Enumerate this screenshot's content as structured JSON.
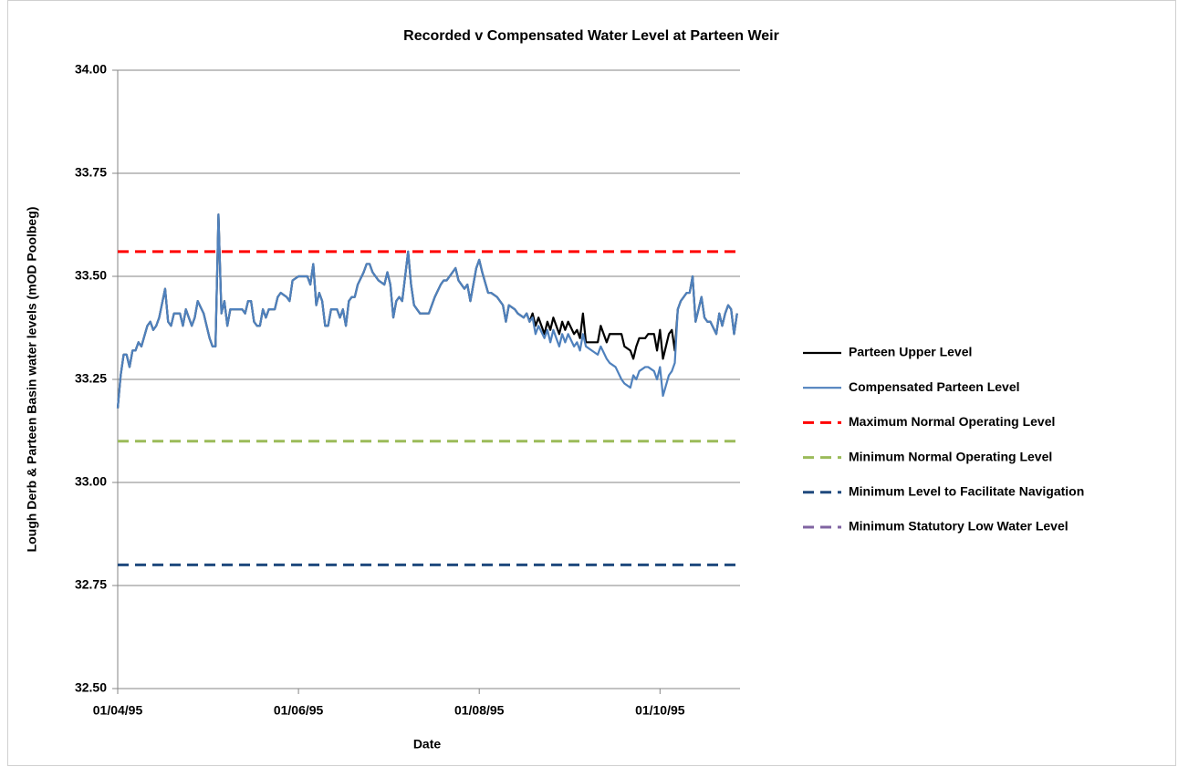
{
  "chart_data": {
    "type": "line",
    "title": "Recorded v Compensated Water Level at Parteen Weir",
    "xlabel": "Date",
    "ylabel": "Lough Derb & Parteen Basin water levels (mOD Poolbeg)",
    "xlim": [
      "01/04/95",
      "28/10/95"
    ],
    "xticks": [
      "01/04/95",
      "01/06/95",
      "01/08/95",
      "01/10/95"
    ],
    "ylim": [
      32.5,
      34
    ],
    "yticks": [
      {
        "value": 32.5,
        "label": "32.50"
      },
      {
        "value": 32.75,
        "label": "32.75"
      },
      {
        "value": 33,
        "label": "33.00"
      },
      {
        "value": 33.25,
        "label": "33.25"
      },
      {
        "value": 33.5,
        "label": "33.50"
      },
      {
        "value": 33.75,
        "label": "33.75"
      },
      {
        "value": 34,
        "label": "34.00"
      }
    ],
    "grid": true,
    "legend": "right",
    "x": [
      "01/04/95",
      "02/04/95",
      "03/04/95",
      "04/04/95",
      "05/04/95",
      "06/04/95",
      "07/04/95",
      "08/04/95",
      "09/04/95",
      "11/04/95",
      "12/04/95",
      "13/04/95",
      "14/04/95",
      "15/04/95",
      "17/04/95",
      "18/04/95",
      "19/04/95",
      "20/04/95",
      "22/04/95",
      "23/04/95",
      "24/04/95",
      "25/04/95",
      "26/04/95",
      "27/04/95",
      "28/04/95",
      "30/04/95",
      "01/05/95",
      "02/05/95",
      "03/05/95",
      "04/05/95",
      "05/05/95",
      "06/05/95",
      "07/05/95",
      "08/05/95",
      "09/05/95",
      "11/05/95",
      "13/05/95",
      "14/05/95",
      "15/05/95",
      "16/05/95",
      "17/05/95",
      "18/05/95",
      "19/05/95",
      "20/05/95",
      "21/05/95",
      "22/05/95",
      "24/05/95",
      "25/05/95",
      "26/05/95",
      "28/05/95",
      "29/05/95",
      "30/05/95",
      "01/06/95",
      "02/06/95",
      "04/06/95",
      "05/06/95",
      "06/06/95",
      "07/06/95",
      "08/06/95",
      "09/06/95",
      "10/06/95",
      "11/06/95",
      "12/06/95",
      "14/06/95",
      "15/06/95",
      "16/06/95",
      "17/06/95",
      "18/06/95",
      "19/06/95",
      "20/06/95",
      "21/06/95",
      "23/06/95",
      "24/06/95",
      "25/06/95",
      "26/06/95",
      "28/06/95",
      "30/06/95",
      "01/07/95",
      "02/07/95",
      "03/07/95",
      "04/07/95",
      "05/07/95",
      "06/07/95",
      "08/07/95",
      "09/07/95",
      "10/07/95",
      "12/07/95",
      "13/07/95",
      "15/07/95",
      "16/07/95",
      "17/07/95",
      "19/07/95",
      "20/07/95",
      "21/07/95",
      "23/07/95",
      "24/07/95",
      "25/07/95",
      "27/07/95",
      "28/07/95",
      "29/07/95",
      "30/07/95",
      "31/07/95",
      "01/08/95",
      "02/08/95",
      "04/08/95",
      "05/08/95",
      "07/08/95",
      "09/08/95",
      "10/08/95",
      "11/08/95",
      "13/08/95",
      "14/08/95",
      "16/08/95",
      "17/08/95",
      "18/08/95",
      "19/08/95",
      "20/08/95",
      "21/08/95",
      "23/08/95",
      "24/08/95",
      "25/08/95",
      "26/08/95",
      "28/08/95",
      "29/08/95",
      "30/08/95",
      "31/08/95",
      "02/09/95",
      "03/09/95",
      "04/09/95",
      "05/09/95",
      "06/09/95",
      "08/09/95",
      "10/09/95",
      "11/09/95",
      "13/09/95",
      "14/09/95",
      "16/09/95",
      "18/09/95",
      "19/09/95",
      "21/09/95",
      "22/09/95",
      "23/09/95",
      "24/09/95",
      "26/09/95",
      "27/09/95",
      "29/09/95",
      "30/09/95",
      "01/10/95",
      "02/10/95",
      "04/10/95",
      "05/10/95",
      "06/10/95",
      "07/10/95",
      "08/10/95",
      "10/10/95",
      "11/10/95",
      "12/10/95",
      "13/10/95",
      "15/10/95",
      "16/10/95",
      "17/10/95",
      "18/10/95",
      "20/10/95",
      "21/10/95",
      "22/10/95",
      "23/10/95",
      "24/10/95",
      "25/10/95",
      "26/10/95",
      "27/10/95"
    ],
    "series": [
      {
        "name": "Parteen Upper Level",
        "color": "#000000",
        "values": [
          33.18,
          33.26,
          33.31,
          33.31,
          33.28,
          33.32,
          33.32,
          33.34,
          33.33,
          33.38,
          33.39,
          33.37,
          33.38,
          33.4,
          33.47,
          33.39,
          33.38,
          33.41,
          33.41,
          33.38,
          33.42,
          33.4,
          33.38,
          33.4,
          33.44,
          33.41,
          33.38,
          33.35,
          33.33,
          33.33,
          33.65,
          33.41,
          33.44,
          33.38,
          33.42,
          33.42,
          33.42,
          33.41,
          33.44,
          33.44,
          33.39,
          33.38,
          33.38,
          33.42,
          33.4,
          33.42,
          33.42,
          33.45,
          33.46,
          33.45,
          33.44,
          33.49,
          33.5,
          33.5,
          33.5,
          33.48,
          33.53,
          33.43,
          33.46,
          33.44,
          33.38,
          33.38,
          33.42,
          33.42,
          33.4,
          33.42,
          33.38,
          33.44,
          33.45,
          33.45,
          33.48,
          33.51,
          33.53,
          33.53,
          33.51,
          33.49,
          33.48,
          33.51,
          33.48,
          33.4,
          33.44,
          33.45,
          33.44,
          33.56,
          33.48,
          33.43,
          33.41,
          33.41,
          33.41,
          33.43,
          33.45,
          33.48,
          33.49,
          33.49,
          33.51,
          33.52,
          33.49,
          33.47,
          33.48,
          33.44,
          33.48,
          33.52,
          33.54,
          33.51,
          33.46,
          33.46,
          33.45,
          33.43,
          33.39,
          33.43,
          33.42,
          33.41,
          33.4,
          33.41,
          33.39,
          33.41,
          33.38,
          33.4,
          33.36,
          33.39,
          33.37,
          33.4,
          33.36,
          33.39,
          33.37,
          33.39,
          33.36,
          33.37,
          33.35,
          33.41,
          33.34,
          33.34,
          33.34,
          33.38,
          33.34,
          33.36,
          33.36,
          33.36,
          33.33,
          33.32,
          33.3,
          33.33,
          33.35,
          33.35,
          33.36,
          33.36,
          33.32,
          33.37,
          33.3,
          33.36,
          33.37,
          33.32,
          33.42,
          33.44,
          33.46,
          33.46,
          33.5,
          33.39,
          33.45,
          33.4,
          33.39,
          33.39,
          33.36,
          33.41,
          33.38,
          33.41,
          33.43,
          33.42,
          33.36,
          33.41
        ]
      },
      {
        "name": "Compensated Parteen Level",
        "color": "#4f81bd",
        "values": [
          33.18,
          33.26,
          33.31,
          33.31,
          33.28,
          33.32,
          33.32,
          33.34,
          33.33,
          33.38,
          33.39,
          33.37,
          33.38,
          33.4,
          33.47,
          33.39,
          33.38,
          33.41,
          33.41,
          33.38,
          33.42,
          33.4,
          33.38,
          33.4,
          33.44,
          33.41,
          33.38,
          33.35,
          33.33,
          33.33,
          33.65,
          33.41,
          33.44,
          33.38,
          33.42,
          33.42,
          33.42,
          33.41,
          33.44,
          33.44,
          33.39,
          33.38,
          33.38,
          33.42,
          33.4,
          33.42,
          33.42,
          33.45,
          33.46,
          33.45,
          33.44,
          33.49,
          33.5,
          33.5,
          33.5,
          33.48,
          33.53,
          33.43,
          33.46,
          33.44,
          33.38,
          33.38,
          33.42,
          33.42,
          33.4,
          33.42,
          33.38,
          33.44,
          33.45,
          33.45,
          33.48,
          33.51,
          33.53,
          33.53,
          33.51,
          33.49,
          33.48,
          33.51,
          33.48,
          33.4,
          33.44,
          33.45,
          33.44,
          33.56,
          33.48,
          33.43,
          33.41,
          33.41,
          33.41,
          33.43,
          33.45,
          33.48,
          33.49,
          33.49,
          33.51,
          33.52,
          33.49,
          33.47,
          33.48,
          33.44,
          33.48,
          33.52,
          33.54,
          33.51,
          33.46,
          33.46,
          33.45,
          33.43,
          33.39,
          33.43,
          33.42,
          33.41,
          33.4,
          33.41,
          33.39,
          33.4,
          33.36,
          33.38,
          33.35,
          33.37,
          33.34,
          33.37,
          33.33,
          33.36,
          33.34,
          33.36,
          33.33,
          33.34,
          33.32,
          33.36,
          33.33,
          33.32,
          33.31,
          33.33,
          33.3,
          33.29,
          33.28,
          33.25,
          33.24,
          33.23,
          33.26,
          33.25,
          33.27,
          33.28,
          33.28,
          33.27,
          33.25,
          33.28,
          33.21,
          33.26,
          33.27,
          33.29,
          33.42,
          33.44,
          33.46,
          33.46,
          33.5,
          33.39,
          33.45,
          33.4,
          33.39,
          33.39,
          33.36,
          33.41,
          33.38,
          33.41,
          33.43,
          33.42,
          33.36,
          33.41
        ]
      }
    ],
    "reference_lines": [
      {
        "name": "Maximum Normal Operating Level",
        "color": "#ff0000",
        "value": 33.56
      },
      {
        "name": "Minimum Normal Operating Level",
        "color": "#9bbb59",
        "value": 33.1
      },
      {
        "name": "Minimum Level to Facilitate Navigation",
        "color": "#1f497d",
        "value": 32.8
      },
      {
        "name": "Minimum Statutory Low Water Level",
        "color": "#8064a2"
      }
    ]
  }
}
